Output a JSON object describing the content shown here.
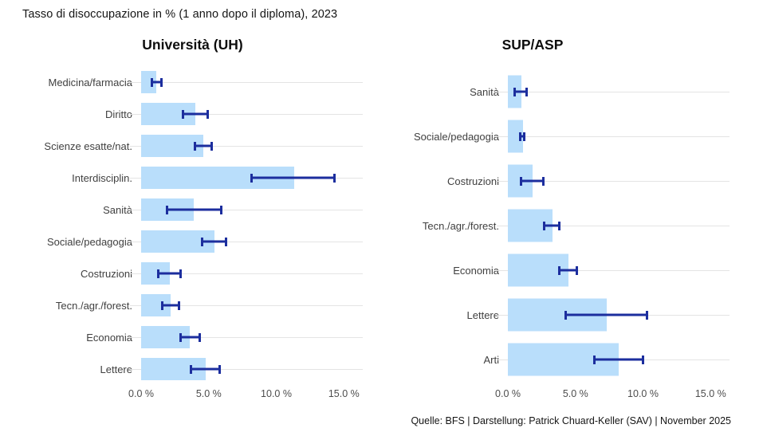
{
  "page": {
    "title": "Tasso di disoccupazione in % (1 anno dopo il diploma), 2023",
    "footer": "Quelle: BFS | Darstellung: Patrick Chuard-Keller (SAV) | November 2025"
  },
  "colors": {
    "bar": "#b9defb",
    "error": "#1c2e9e",
    "gridline": "#e4e4e4",
    "label": "#404040",
    "axis_label": "#4d4d4d"
  },
  "chart_data": [
    {
      "type": "bar",
      "orientation": "horizontal",
      "title": "Università (UH)",
      "categories": [
        "Medicina/farmacia",
        "Diritto",
        "Scienze esatte/nat.",
        "Interdisciplin.",
        "Sanità",
        "Sociale/pedagogia",
        "Costruzioni",
        "Tecn./agr./forest.",
        "Economia",
        "Lettere"
      ],
      "series": [
        {
          "name": "Tasso di disoccupazione %",
          "values": [
            1.1,
            4.0,
            4.6,
            11.3,
            3.9,
            5.4,
            2.1,
            2.2,
            3.6,
            4.8
          ]
        }
      ],
      "error_low": [
        0.7,
        3.0,
        3.9,
        8.1,
        1.8,
        4.4,
        1.2,
        1.5,
        2.8,
        3.6
      ],
      "error_high": [
        1.6,
        5.0,
        5.3,
        14.4,
        6.0,
        6.4,
        3.0,
        2.9,
        4.4,
        5.9
      ],
      "x_ticks": [
        "0.0 %",
        "5.0 %",
        "10.0 %",
        "15.0 %"
      ],
      "x_tick_values": [
        0,
        5,
        10,
        15
      ],
      "xlabel": "",
      "ylabel": "",
      "xlim": [
        0,
        16.4
      ],
      "grid": "per-category horizontal gridlines",
      "legend": "none"
    },
    {
      "type": "bar",
      "orientation": "horizontal",
      "title": "SUP/ASP",
      "categories": [
        "Sanità",
        "Sociale/pedagogia",
        "Costruzioni",
        "Tecn./agr./forest.",
        "Economia",
        "Lettere",
        "Arti"
      ],
      "series": [
        {
          "name": "Tasso di disoccupazione %",
          "values": [
            1.0,
            1.1,
            1.8,
            3.3,
            4.5,
            7.3,
            8.2
          ]
        }
      ],
      "error_low": [
        0.4,
        0.8,
        0.9,
        2.6,
        3.7,
        4.2,
        6.3
      ],
      "error_high": [
        1.5,
        1.3,
        2.7,
        3.9,
        5.2,
        10.4,
        10.1
      ],
      "x_ticks": [
        "0.0 %",
        "5.0 %",
        "10.0 %",
        "15.0 %"
      ],
      "x_tick_values": [
        0,
        5,
        10,
        15
      ],
      "xlabel": "",
      "ylabel": "",
      "xlim": [
        0,
        16.4
      ],
      "grid": "per-category horizontal gridlines",
      "legend": "none"
    }
  ]
}
